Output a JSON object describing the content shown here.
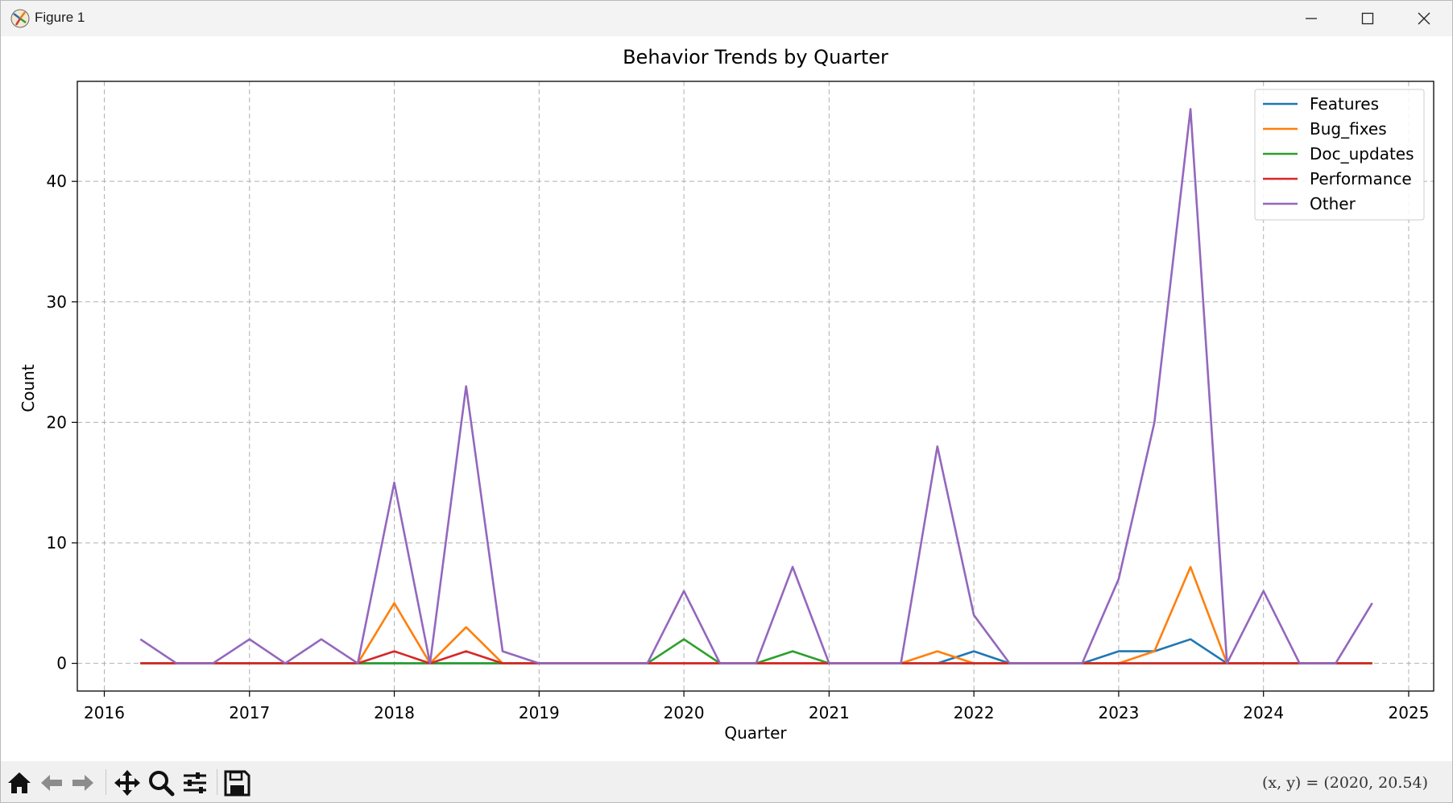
{
  "window": {
    "title": "Figure 1",
    "icons": {
      "app": "matplotlib-icon",
      "minimize": "minimize-icon",
      "maximize": "maximize-icon",
      "close": "close-icon"
    }
  },
  "toolbar": {
    "buttons": [
      "home-icon",
      "back-arrow-icon",
      "forward-arrow-icon",
      "pan-icon",
      "zoom-icon",
      "configure-subplots-icon",
      "save-icon"
    ],
    "coords": "(x, y) = (2020, 20.54)"
  },
  "colors": {
    "Features": "#1f77b4",
    "Bug_fixes": "#ff7f0e",
    "Doc_updates": "#2ca02c",
    "Performance": "#d62728",
    "Other": "#9467bd"
  },
  "chart_data": {
    "type": "line",
    "title": "Behavior Trends by Quarter",
    "xlabel": "Quarter",
    "ylabel": "Count",
    "x": [
      "2016-04-01",
      "2016-07-01",
      "2016-10-01",
      "2017-01-01",
      "2017-04-01",
      "2017-07-01",
      "2017-10-01",
      "2018-01-01",
      "2018-04-01",
      "2018-07-01",
      "2018-10-01",
      "2019-01-01",
      "2019-04-01",
      "2019-07-01",
      "2019-10-01",
      "2020-01-01",
      "2020-04-01",
      "2020-07-01",
      "2020-10-01",
      "2021-01-01",
      "2021-04-01",
      "2021-07-01",
      "2021-10-01",
      "2022-01-01",
      "2022-04-01",
      "2022-07-01",
      "2022-10-01",
      "2023-01-01",
      "2023-04-01",
      "2023-07-01",
      "2023-10-01",
      "2024-01-01",
      "2024-04-01",
      "2024-07-01",
      "2024-10-01"
    ],
    "xticks": [
      "2016",
      "2017",
      "2018",
      "2019",
      "2020",
      "2021",
      "2022",
      "2023",
      "2024",
      "2025"
    ],
    "yticks": [
      0,
      10,
      20,
      30,
      40
    ],
    "xlim": [
      "2015-10-25",
      "2025-03-05"
    ],
    "ylim": [
      -2.3,
      48.3
    ],
    "grid": true,
    "legend_position": "top-right",
    "series": [
      {
        "name": "Features",
        "values": [
          0,
          0,
          0,
          0,
          0,
          0,
          0,
          0,
          0,
          0,
          0,
          0,
          0,
          0,
          0,
          0,
          0,
          0,
          0,
          0,
          0,
          0,
          0,
          1,
          0,
          0,
          0,
          1,
          1,
          2,
          0,
          0,
          0,
          0,
          0
        ]
      },
      {
        "name": "Bug_fixes",
        "values": [
          0,
          0,
          0,
          0,
          0,
          0,
          0,
          5,
          0,
          3,
          0,
          0,
          0,
          0,
          0,
          0,
          0,
          0,
          0,
          0,
          0,
          0,
          1,
          0,
          0,
          0,
          0,
          0,
          1,
          8,
          0,
          0,
          0,
          0,
          0
        ]
      },
      {
        "name": "Doc_updates",
        "values": [
          0,
          0,
          0,
          0,
          0,
          0,
          0,
          0,
          0,
          0,
          0,
          0,
          0,
          0,
          0,
          2,
          0,
          0,
          1,
          0,
          0,
          0,
          0,
          0,
          0,
          0,
          0,
          0,
          0,
          0,
          0,
          0,
          0,
          0,
          0
        ]
      },
      {
        "name": "Performance",
        "values": [
          0,
          0,
          0,
          0,
          0,
          0,
          0,
          1,
          0,
          1,
          0,
          0,
          0,
          0,
          0,
          0,
          0,
          0,
          0,
          0,
          0,
          0,
          0,
          0,
          0,
          0,
          0,
          0,
          0,
          0,
          0,
          0,
          0,
          0,
          0
        ]
      },
      {
        "name": "Other",
        "values": [
          2,
          0,
          0,
          2,
          0,
          2,
          0,
          15,
          0,
          23,
          1,
          0,
          0,
          0,
          0,
          6,
          0,
          0,
          8,
          0,
          0,
          0,
          18,
          4,
          0,
          0,
          0,
          7,
          20,
          46,
          0,
          6,
          0,
          0,
          5
        ]
      }
    ]
  }
}
